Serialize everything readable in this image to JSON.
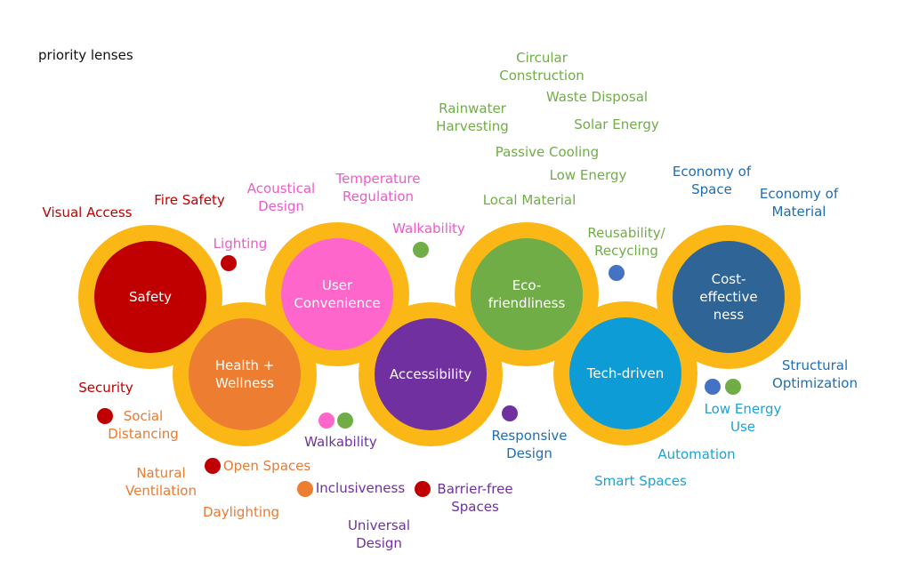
{
  "title": "priority lenses",
  "hubs": {
    "safety": "Safety",
    "health": "Health +\nWellness",
    "user": "User\nConvenience",
    "accessibility": "Accessibility",
    "eco": "Eco-\nfriendliness",
    "tech": "Tech-driven",
    "cost": "Cost-\neffective\nness"
  },
  "labels": {
    "visual_access": "Visual Access",
    "fire_safety": "Fire Safety",
    "lighting": "Lighting",
    "security": "Security",
    "social_distancing": "Social\nDistancing",
    "natural_ventilation": "Natural\nVentilation",
    "open_spaces": "Open Spaces",
    "daylighting": "Daylighting",
    "acoustical_design": "Acoustical\nDesign",
    "temperature_regulation": "Temperature\nRegulation",
    "walkability_top": "Walkability",
    "walkability_bottom": "Walkability",
    "inclusiveness": "Inclusiveness",
    "universal_design": "Universal\nDesign",
    "barrier_free_spaces": "Barrier-free\nSpaces",
    "responsive_design": "Responsive\nDesign",
    "circular_construction": "Circular\nConstruction",
    "waste_disposal": "Waste Disposal",
    "rainwater_harvesting": "Rainwater\nHarvesting",
    "solar_energy": "Solar Energy",
    "passive_cooling": "Passive Cooling",
    "low_energy_green": "Low Energy",
    "local_material": "Local Material",
    "reusability_recycling": "Reusability/\nRecycling",
    "economy_of_space": "Economy of\nSpace",
    "economy_of_material": "Economy of\nMaterial",
    "structural_optimization": "Structural\nOptimization",
    "low_energy_use": "Low Energy\nUse",
    "automation": "Automation",
    "smart_spaces": "Smart Spaces"
  },
  "colors": {
    "ring": "#FBB716",
    "safety": "#C00000",
    "health": "#ED7D31",
    "user": "#FF66CC",
    "accessibility": "#7030A0",
    "eco": "#70AD47",
    "tech": "#0E9CD6",
    "cost": "#2E6496",
    "dot_red": "#C00000",
    "dot_orange": "#ED7D31",
    "dot_pink": "#FF66CC",
    "dot_green": "#70AD47",
    "dot_purple": "#7030A0",
    "dot_blue": "#4472C4"
  }
}
